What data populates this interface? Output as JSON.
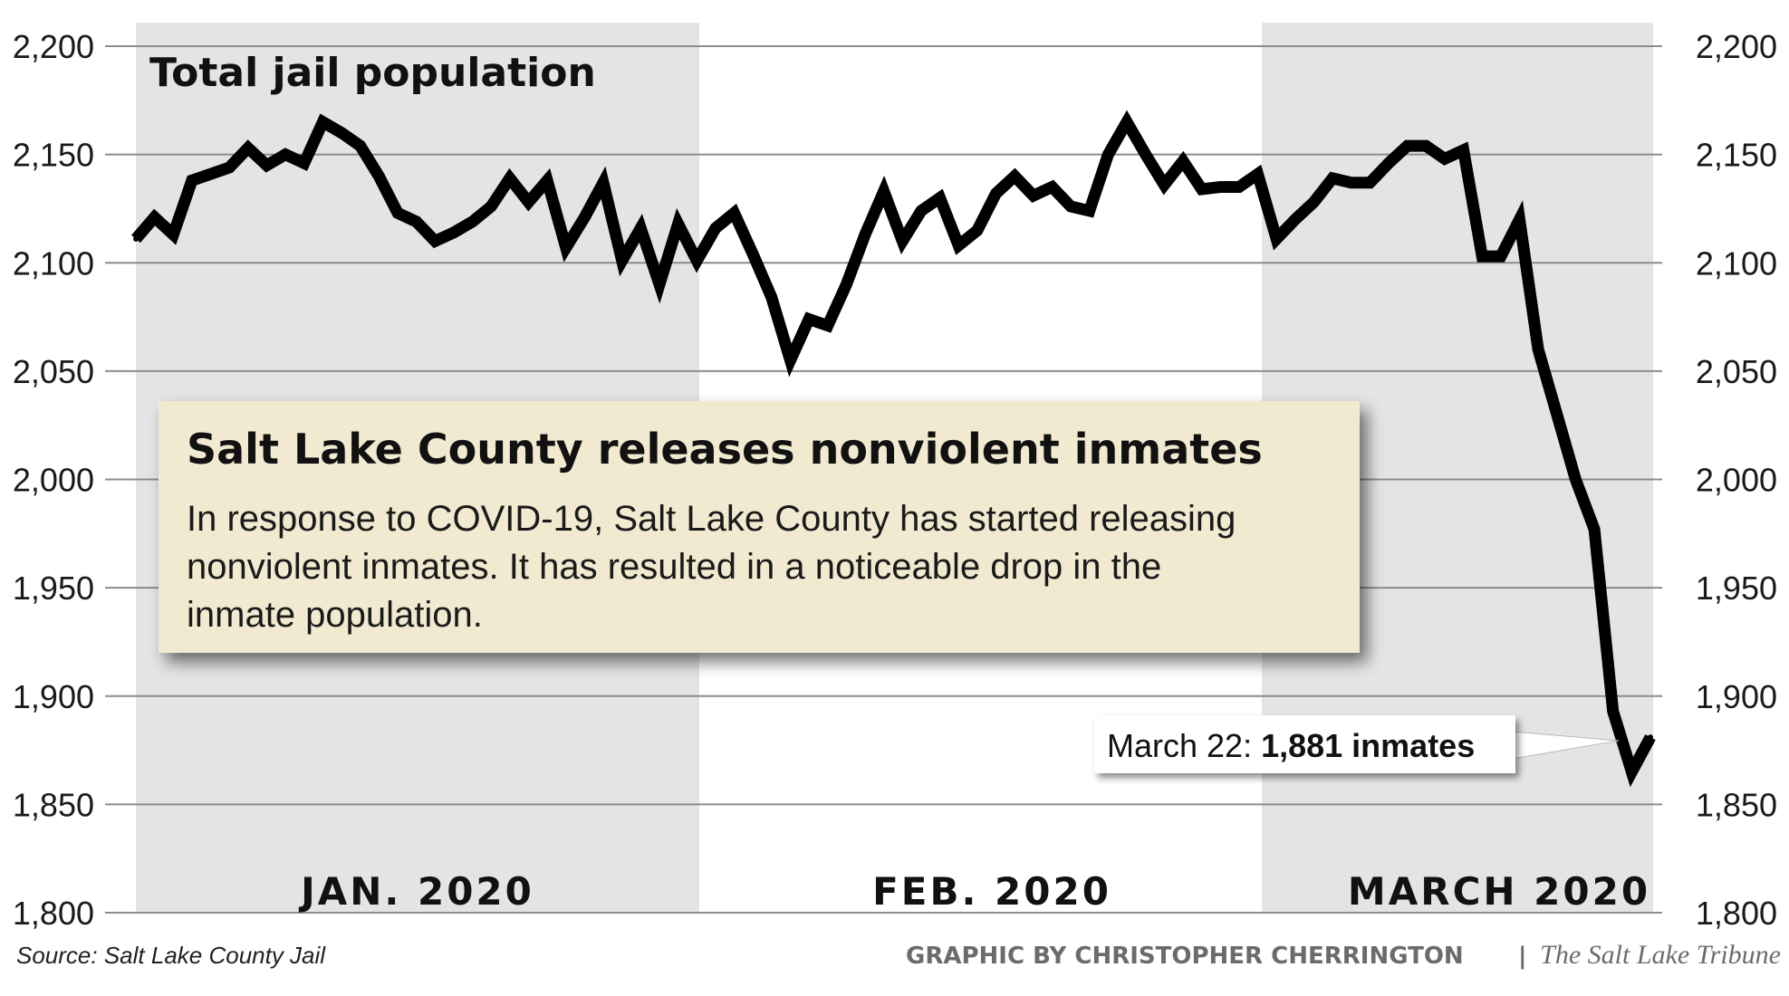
{
  "chart_data": {
    "type": "line",
    "title": "Total jail population",
    "ylim": [
      1800,
      2200
    ],
    "yticks": [
      1800,
      1850,
      1900,
      1950,
      2000,
      2050,
      2100,
      2150,
      2200
    ],
    "ytick_labels": [
      "1,800",
      "1,850",
      "1,900",
      "1,950",
      "2,000",
      "2,050",
      "2,100",
      "2,150",
      "2,200"
    ],
    "months": [
      {
        "label": "JAN. 2020",
        "shaded": true
      },
      {
        "label": "FEB. 2020",
        "shaded": false
      },
      {
        "label": "MARCH 2020",
        "shaded": true
      }
    ],
    "x_start": "Jan 1",
    "x_end": "Mar 22",
    "series": [
      {
        "name": "Total jail population",
        "color": "#000000",
        "values": [
          2111,
          2121,
          2113,
          2138,
          2141,
          2144,
          2153,
          2145,
          2150,
          2146,
          2165,
          2160,
          2154,
          2140,
          2123,
          2119,
          2110,
          2114,
          2119,
          2126,
          2139,
          2128,
          2138,
          2107,
          2121,
          2137,
          2101,
          2116,
          2090,
          2118,
          2101,
          2116,
          2123,
          2104,
          2084,
          2055,
          2074,
          2071,
          2090,
          2113,
          2133,
          2110,
          2124,
          2130,
          2108,
          2115,
          2132,
          2140,
          2131,
          2135,
          2126,
          2124,
          2150,
          2165,
          2150,
          2136,
          2147,
          2134,
          2135,
          2135,
          2141,
          2111,
          2120,
          2128,
          2139,
          2137,
          2137,
          2146,
          2154,
          2154,
          2148,
          2152,
          2103,
          2103,
          2120,
          2060,
          2030,
          2000,
          1977,
          1893,
          1865,
          1881
        ]
      }
    ],
    "annotation": {
      "prefix": "March 22: ",
      "value": "1,881 inmates"
    }
  },
  "info_box": {
    "heading": "Salt Lake County releases nonviolent inmates",
    "body_lines": [
      "In response to COVID-19, Salt Lake County has started releasing",
      "nonviolent inmates. It has resulted in a noticeable drop in the",
      "inmate population."
    ]
  },
  "footer": {
    "source": "Source: Salt Lake County Jail",
    "credit": "GRAPHIC BY CHRISTOPHER CHERRINGTON",
    "separator": "|",
    "publication": "The Salt Lake Tribune"
  },
  "colors": {
    "shade": "#e4e4e6",
    "grid": "#8c8c8c",
    "box_fill": "#f1ead0",
    "line": "#000000"
  }
}
